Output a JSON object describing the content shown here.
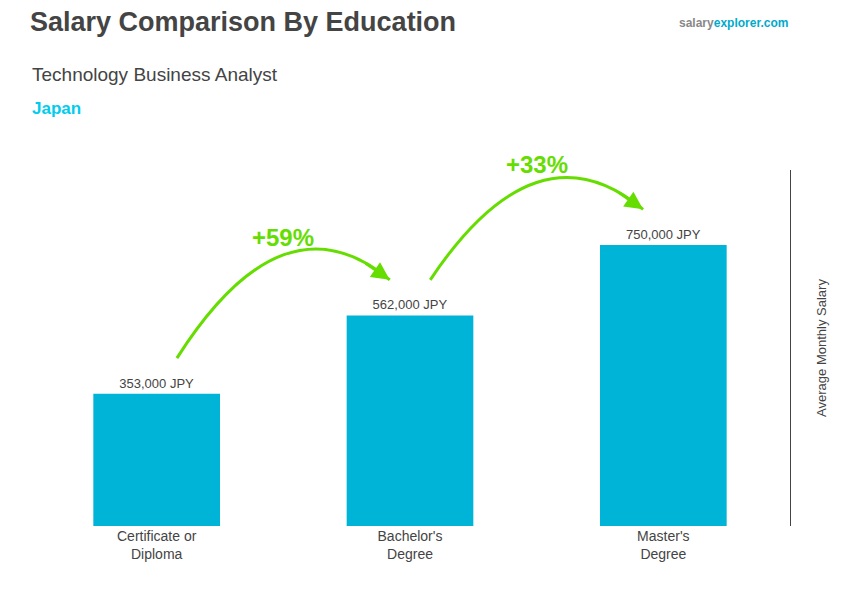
{
  "chart_data": {
    "type": "bar",
    "title": "Salary Comparison By Education",
    "subtitle": "Technology Business Analyst",
    "ylabel": "Average Monthly Salary",
    "categories": [
      "Certificate or\nDiploma",
      "Bachelor's\nDegree",
      "Master's\nDegree"
    ],
    "values": [
      353000,
      562000,
      750000
    ],
    "value_labels": [
      "353,000 JPY",
      "562,000 JPY",
      "750,000 JPY"
    ],
    "data_labels": true,
    "color": "#00b4d8",
    "ylim": [
      0,
      950000
    ],
    "grid": false,
    "tick_labels": "x",
    "annotations": [
      {
        "text": "+59%",
        "from": "Certificate or\nDiploma",
        "to": "Bachelor's\nDegree",
        "color": "#66dd00"
      },
      {
        "text": "+33%",
        "from": "Bachelor's\nDegree",
        "to": "Master's\nDegree",
        "color": "#66dd00"
      },
      {
        "text": "Japan",
        "color": "#00ccee"
      },
      {
        "text": "salary",
        "color": "#888888"
      },
      {
        "text": "explorer.com",
        "color": "#00aacc"
      }
    ]
  }
}
